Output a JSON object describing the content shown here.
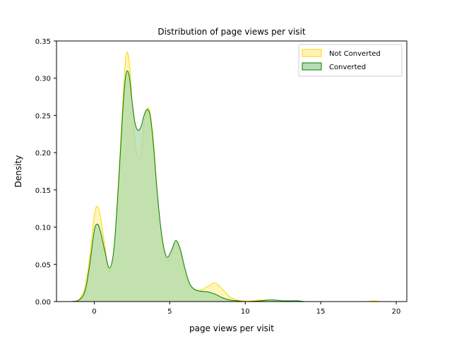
{
  "chart_data": {
    "type": "area",
    "title": "Distribution of page views per visit",
    "xlabel": "page views per visit",
    "ylabel": "Density",
    "xlim": [
      -2.5,
      20.7
    ],
    "ylim": [
      0,
      0.35
    ],
    "xticks": [
      0,
      5,
      10,
      15,
      20
    ],
    "xtick_labels": [
      "0",
      "5",
      "10",
      "15",
      "20"
    ],
    "yticks": [
      0,
      0.05,
      0.1,
      0.15,
      0.2,
      0.25,
      0.3,
      0.35
    ],
    "ytick_labels": [
      "0.00",
      "0.05",
      "0.10",
      "0.15",
      "0.20",
      "0.25",
      "0.30",
      "0.35"
    ],
    "grid": false,
    "legend_position": "top-right",
    "series": [
      {
        "name": "Not Converted",
        "color": "#ffd700",
        "fill": "#fff2a8",
        "x": [
          -1.5,
          -1.0,
          -0.6,
          -0.3,
          0.0,
          0.2,
          0.4,
          0.7,
          1.0,
          1.3,
          1.6,
          1.9,
          2.1,
          2.3,
          2.5,
          2.7,
          2.9,
          3.1,
          3.3,
          3.6,
          3.9,
          4.2,
          4.5,
          4.8,
          5.1,
          5.4,
          5.7,
          6.0,
          6.3,
          6.6,
          7.0,
          7.5,
          8.0,
          8.5,
          9.0,
          9.5,
          10.0,
          10.5,
          11.0,
          11.5,
          12.0,
          13.0,
          14.0,
          15.0,
          17.0,
          18.0,
          18.5,
          19.0,
          19.6
        ],
        "y": [
          0.0,
          0.003,
          0.02,
          0.06,
          0.115,
          0.128,
          0.115,
          0.075,
          0.04,
          0.07,
          0.16,
          0.27,
          0.33,
          0.325,
          0.27,
          0.215,
          0.195,
          0.2,
          0.24,
          0.26,
          0.22,
          0.14,
          0.08,
          0.055,
          0.062,
          0.078,
          0.065,
          0.038,
          0.022,
          0.016,
          0.015,
          0.02,
          0.025,
          0.016,
          0.006,
          0.002,
          0.001,
          0.001,
          0.002,
          0.002,
          0.001,
          0.001,
          0.0,
          0.0,
          0.0,
          0.0,
          0.001,
          0.0,
          0.0
        ]
      },
      {
        "name": "Converted",
        "color": "#008000",
        "fill": "#a8d8a8",
        "x": [
          -1.5,
          -1.0,
          -0.6,
          -0.3,
          0.0,
          0.2,
          0.4,
          0.7,
          1.0,
          1.3,
          1.6,
          1.9,
          2.1,
          2.3,
          2.5,
          2.7,
          2.9,
          3.1,
          3.3,
          3.5,
          3.7,
          3.9,
          4.2,
          4.5,
          4.8,
          5.1,
          5.4,
          5.7,
          6.0,
          6.3,
          6.6,
          7.0,
          7.5,
          8.0,
          8.5,
          9.0,
          9.5,
          10.0,
          11.0,
          11.5,
          12.0,
          12.5,
          13.0,
          13.5,
          14.0,
          15.0,
          19.6
        ],
        "y": [
          0.0,
          0.002,
          0.015,
          0.05,
          0.095,
          0.104,
          0.095,
          0.068,
          0.045,
          0.07,
          0.155,
          0.26,
          0.305,
          0.305,
          0.27,
          0.24,
          0.23,
          0.235,
          0.25,
          0.258,
          0.25,
          0.215,
          0.14,
          0.085,
          0.06,
          0.068,
          0.082,
          0.07,
          0.045,
          0.025,
          0.017,
          0.014,
          0.013,
          0.01,
          0.005,
          0.002,
          0.001,
          0.0,
          0.001,
          0.002,
          0.002,
          0.001,
          0.001,
          0.001,
          0.0,
          0.0,
          0.0
        ]
      }
    ]
  }
}
